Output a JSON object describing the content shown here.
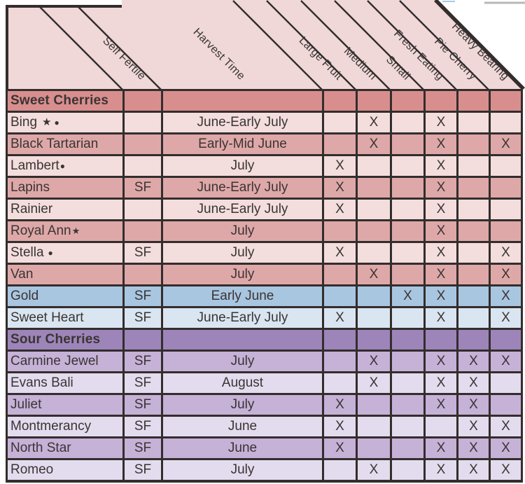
{
  "table": {
    "column_labels": [
      "Self Fertile",
      "Harvest Time",
      "Large Fruit",
      "Medium",
      "Small",
      "Fresh Eating",
      "Pie Cherry",
      "Heavy Bearing"
    ],
    "attribute_columns": [
      "Large Fruit",
      "Medium",
      "Small",
      "Fresh Eating",
      "Pie Cherry",
      "Heavy Bearing"
    ],
    "sections": [
      {
        "title": "Sweet Cherries",
        "tone": "section_sweet",
        "rows": [
          {
            "name": "Bing",
            "marks": [
              {
                "glyph": "★",
                "style": "star-inline"
              },
              {
                "glyph": "●",
                "style": "dot-inline"
              }
            ],
            "self_fertile": "",
            "harvest": "June-Early July",
            "cells": [
              "",
              "X",
              "",
              "X",
              "",
              ""
            ],
            "tone": "pink_light"
          },
          {
            "name": "Black Tartarian",
            "marks": [],
            "self_fertile": "",
            "harvest": "Early-Mid June",
            "cells": [
              "",
              "X",
              "",
              "X",
              "",
              "X"
            ],
            "tone": "pink_dark"
          },
          {
            "name": "Lambert",
            "marks": [
              {
                "glyph": "●",
                "style": "dot-sup"
              }
            ],
            "self_fertile": "",
            "harvest": "July",
            "cells": [
              "X",
              "",
              "",
              "X",
              "",
              ""
            ],
            "tone": "pink_light"
          },
          {
            "name": "Lapins",
            "marks": [],
            "self_fertile": "SF",
            "harvest": "June-Early July",
            "cells": [
              "X",
              "",
              "",
              "X",
              "",
              ""
            ],
            "tone": "pink_dark"
          },
          {
            "name": "Rainier",
            "marks": [],
            "self_fertile": "",
            "harvest": "June-Early July",
            "cells": [
              "X",
              "",
              "",
              "X",
              "",
              ""
            ],
            "tone": "pink_light"
          },
          {
            "name": "Royal Ann",
            "marks": [
              {
                "glyph": "★",
                "style": "star-sup"
              }
            ],
            "self_fertile": "",
            "harvest": "July",
            "cells": [
              "",
              "",
              "",
              "X",
              "",
              ""
            ],
            "tone": "pink_dark"
          },
          {
            "name": "Stella",
            "marks": [
              {
                "glyph": "●",
                "style": "dot-mid"
              }
            ],
            "self_fertile": "SF",
            "harvest": "July",
            "cells": [
              "X",
              "",
              "",
              "X",
              "",
              "X"
            ],
            "tone": "pink_light"
          },
          {
            "name": "Van",
            "marks": [],
            "self_fertile": "",
            "harvest": "July",
            "cells": [
              "",
              "X",
              "",
              "X",
              "",
              "X"
            ],
            "tone": "pink_dark"
          },
          {
            "name": "Gold",
            "marks": [],
            "self_fertile": "SF",
            "harvest": "Early June",
            "cells": [
              "",
              "",
              "X",
              "X",
              "",
              "X"
            ],
            "tone": "blue_dark"
          },
          {
            "name": "Sweet Heart",
            "marks": [],
            "self_fertile": "SF",
            "harvest": "June-Early July",
            "cells": [
              "X",
              "",
              "",
              "X",
              "",
              "X"
            ],
            "tone": "blue_light"
          }
        ]
      },
      {
        "title": "Sour Cherries",
        "tone": "section_sour",
        "rows": [
          {
            "name": "Carmine Jewel",
            "marks": [],
            "self_fertile": "SF",
            "harvest": "July",
            "cells": [
              "",
              "X",
              "",
              "X",
              "X",
              "X"
            ],
            "tone": "purple_dark"
          },
          {
            "name": "Evans Bali",
            "marks": [],
            "self_fertile": "SF",
            "harvest": "August",
            "cells": [
              "",
              "X",
              "",
              "X",
              "X",
              ""
            ],
            "tone": "purple_light"
          },
          {
            "name": "Juliet",
            "marks": [],
            "self_fertile": "SF",
            "harvest": "July",
            "cells": [
              "X",
              "",
              "",
              "X",
              "X",
              ""
            ],
            "tone": "purple_dark"
          },
          {
            "name": "Montmerancy",
            "marks": [],
            "self_fertile": "SF",
            "harvest": "June",
            "cells": [
              "X",
              "",
              "",
              "",
              "X",
              "X"
            ],
            "tone": "purple_light"
          },
          {
            "name": "North Star",
            "marks": [],
            "self_fertile": "SF",
            "harvest": "June",
            "cells": [
              "X",
              "",
              "",
              "X",
              "X",
              "X"
            ],
            "tone": "purple_dark"
          },
          {
            "name": "Romeo",
            "marks": [],
            "self_fertile": "SF",
            "harvest": "July",
            "cells": [
              "",
              "X",
              "",
              "X",
              "X",
              "X"
            ],
            "tone": "purple_light"
          }
        ]
      }
    ],
    "self_fertile_value": "SF",
    "checkmark_glyph": "X"
  },
  "colors": {
    "header_bg": "#f0d8d8",
    "section_sweet": "#d98e8e",
    "pink_dark": "#dfa8a8",
    "pink_light": "#f3dddd",
    "blue_dark": "#a9c6e0",
    "blue_light": "#d9e6f1",
    "section_sour": "#9d85b9",
    "purple_dark": "#c6b1d7",
    "purple_light": "#e3dcee",
    "border": "#332d2d",
    "text": "#3a3434",
    "artifact_grey": "#b8b8b8",
    "artifact_blue": "#a8c8e8"
  }
}
